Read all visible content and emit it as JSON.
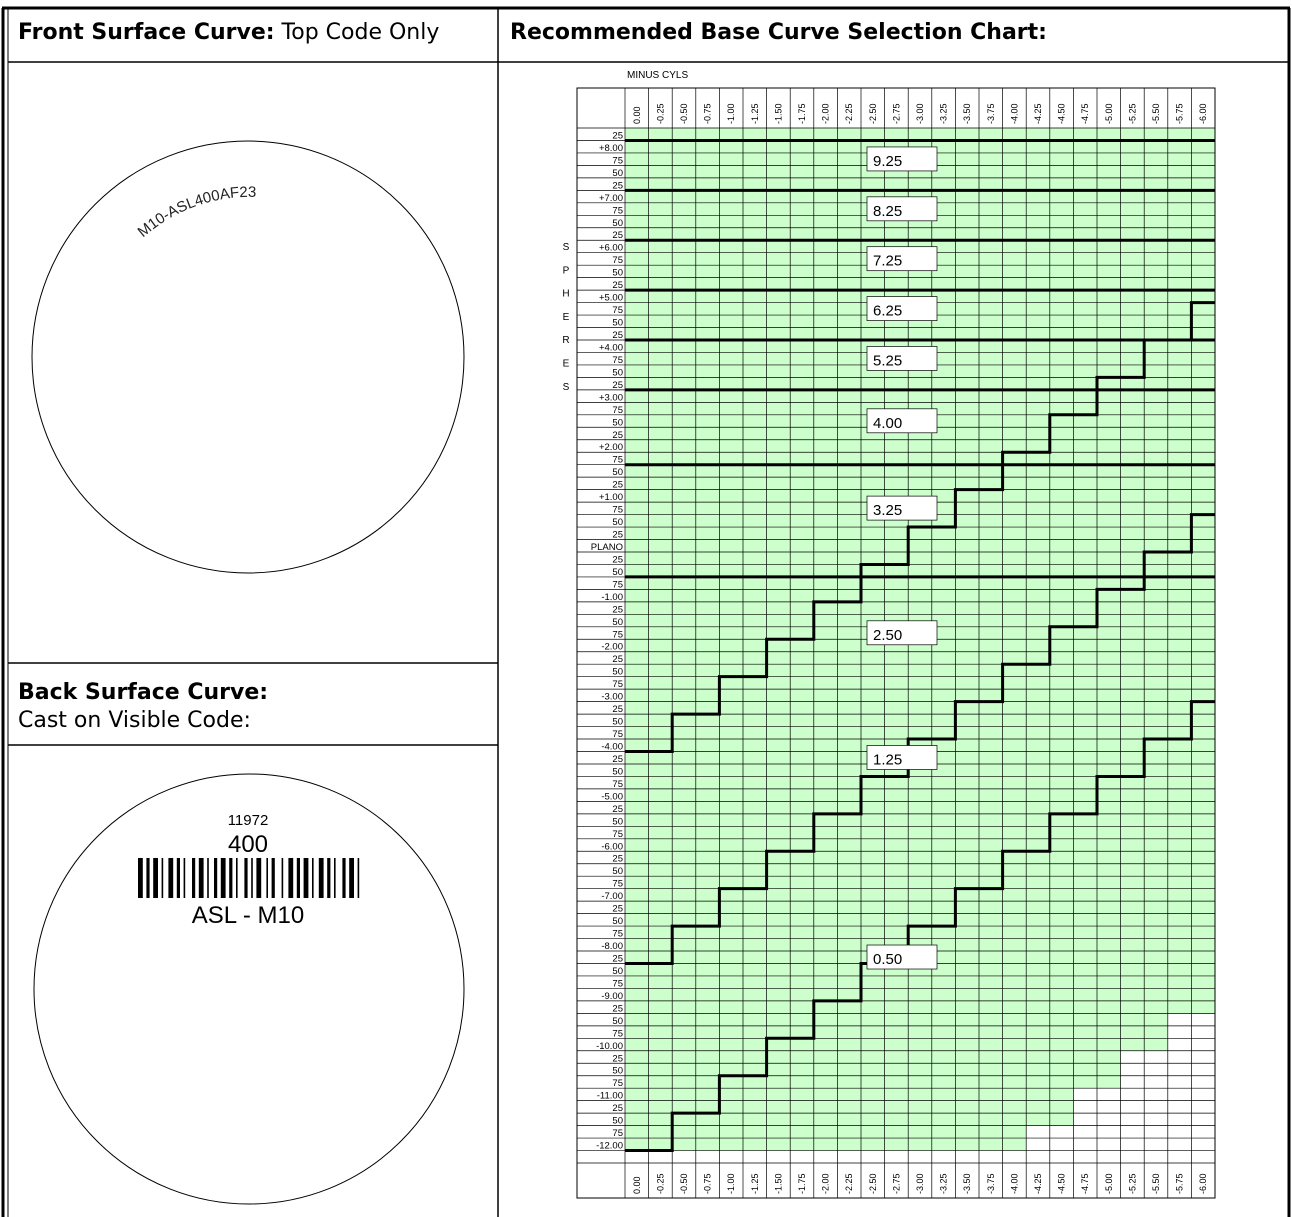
{
  "front_surface": {
    "header_bold": "Front Surface Curve:",
    "header_text": " Top Code Only",
    "engraving": "M10-ASL400AF23"
  },
  "back_surface": {
    "header_bold": "Back Surface Curve:",
    "subtext": "Cast on Visible Code:",
    "code_number": "11972",
    "code_value": "400",
    "code_label": "ASL - M10"
  },
  "chart": {
    "header": "Recommended Base Curve Selection Chart:",
    "column_title": "MINUS CYLS",
    "row_title_letters": [
      "S",
      "P",
      "H",
      "E",
      "R",
      "E",
      "S"
    ],
    "colors": {
      "fill": "#ccffcc",
      "line": "#000000"
    }
  },
  "chart_data": {
    "type": "table",
    "title": "Recommended Base Curve Selection Chart:",
    "xlabel": "MINUS CYLS",
    "ylabel": "SPHERES",
    "columns": [
      "0.00",
      "-0.25",
      "-0.50",
      "-0.75",
      "-1.00",
      "-1.25",
      "-1.50",
      "-1.75",
      "-2.00",
      "-2.25",
      "-2.50",
      "-2.75",
      "-3.00",
      "-3.25",
      "-3.50",
      "-3.75",
      "-4.00",
      "-4.25",
      "-4.50",
      "-4.75",
      "-5.00",
      "-5.25",
      "-5.50",
      "-5.75",
      "-6.00"
    ],
    "rows": [
      "25",
      "+8.00",
      "75",
      "50",
      "25",
      "+7.00",
      "75",
      "50",
      "25",
      "+6.00",
      "75",
      "50",
      "25",
      "+5.00",
      "75",
      "50",
      "25",
      "+4.00",
      "75",
      "50",
      "25",
      "+3.00",
      "75",
      "50",
      "25",
      "+2.00",
      "75",
      "50",
      "25",
      "+1.00",
      "75",
      "50",
      "25",
      "PLANO",
      "25",
      "50",
      "75",
      "-1.00",
      "25",
      "50",
      "75",
      "-2.00",
      "25",
      "50",
      "75",
      "-3.00",
      "25",
      "50",
      "75",
      "-4.00",
      "25",
      "50",
      "75",
      "-5.00",
      "25",
      "50",
      "75",
      "-6.00",
      "25",
      "50",
      "75",
      "-7.00",
      "25",
      "50",
      "75",
      "-8.00",
      "25",
      "50",
      "75",
      "-9.00",
      "25",
      "50",
      "75",
      "-10.00",
      "25",
      "50",
      "75",
      "-11.00",
      "25",
      "50",
      "75",
      "-12.00",
      ""
    ],
    "base_curves": [
      "9.25",
      "8.25",
      "7.25",
      "6.25",
      "5.25",
      "4.00",
      "3.25",
      "2.50",
      "1.25",
      "0.50"
    ],
    "zone_start_sphere": [
      "+8.25",
      "+7.25",
      "+6.25",
      "+5.25",
      "+4.25",
      "+3.25",
      "+1.75",
      "-0.75",
      "-4.00 minus 0.75 per -0.50 cyl",
      "-8.00 minus 0.75 per -0.50 cyl"
    ],
    "fill_limit": "green through -9.25 sphere at -6.00 cyl; stair edge rises 0.75 per -0.50 cyl below that"
  }
}
